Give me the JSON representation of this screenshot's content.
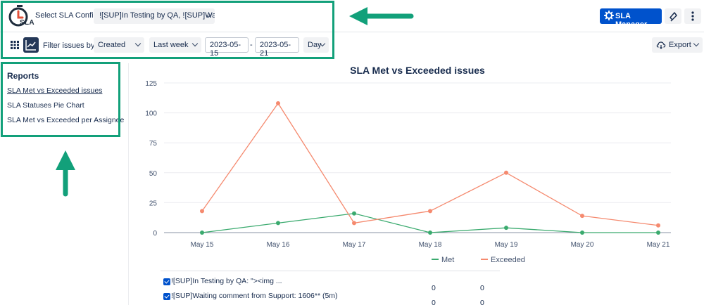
{
  "header": {
    "logo_text": "SLA",
    "config_label": "Select SLA Config",
    "config_value": "![SUP]In Testing by QA, ![SUP]Wai...",
    "sla_manager_label": "SLA Manager"
  },
  "filters": {
    "label": "Filter issues by:",
    "field": "Created",
    "period": "Last week",
    "date_from": "2023-05-15",
    "separator": "-",
    "date_to": "2023-05-21",
    "granularity": "Day",
    "export_label": "Export"
  },
  "sidebar": {
    "title": "Reports",
    "items": [
      {
        "label": "SLA Met vs Exceeded issues",
        "active": true
      },
      {
        "label": "SLA Statuses Pie Chart",
        "active": false
      },
      {
        "label": "SLA Met vs Exceeded per Assignee",
        "active": false
      }
    ]
  },
  "colors": {
    "met": "#3aaa6e",
    "exceeded": "#f58a6f",
    "primary": "#0052cc",
    "annotation": "#12a07a"
  },
  "chart_data": {
    "type": "line",
    "title": "SLA Met vs Exceeded issues",
    "categories": [
      "May 15",
      "May 16",
      "May 17",
      "May 18",
      "May 19",
      "May 20",
      "May 21"
    ],
    "yticks": [
      0,
      25,
      50,
      75,
      100,
      125
    ],
    "ylim": [
      0,
      125
    ],
    "legend_position": "bottom",
    "series": [
      {
        "name": "Met",
        "values": [
          0,
          8,
          16,
          0,
          4,
          0,
          0
        ]
      },
      {
        "name": "Exceeded",
        "values": [
          18,
          108,
          8,
          18,
          50,
          14,
          6
        ]
      }
    ]
  },
  "table": {
    "rows": [
      {
        "name": "![SUP]In Testing by QA: \"><img ...",
        "met": "0",
        "exceeded": "0"
      },
      {
        "name": "![SUP]Waiting comment from Support: 1606** (5m)",
        "met": "0",
        "exceeded": "0"
      }
    ]
  }
}
